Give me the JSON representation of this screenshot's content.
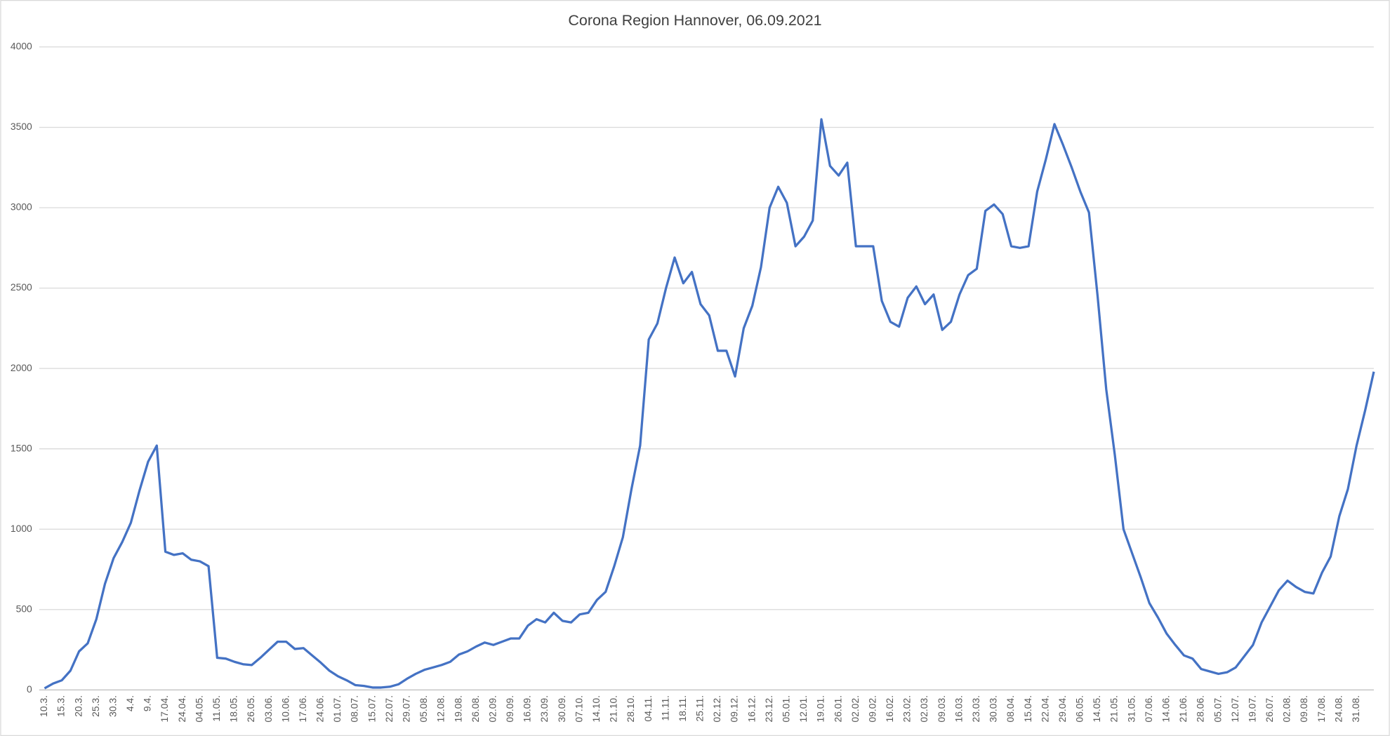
{
  "chart_data": {
    "type": "line",
    "title": "Corona Region Hannover, 06.09.2021",
    "categories": [
      "10.3.",
      null,
      "15.3.",
      null,
      "20.3.",
      null,
      "25.3.",
      null,
      "30.3.",
      null,
      "4.4.",
      null,
      "9.4.",
      null,
      "17.04.",
      null,
      "24.04.",
      null,
      "04.05.",
      null,
      "11.05.",
      null,
      "18.05.",
      null,
      "26.05.",
      null,
      "03.06.",
      null,
      "10.06.",
      null,
      "17.06.",
      null,
      "24.06.",
      null,
      "01.07.",
      null,
      "08.07.",
      null,
      "15.07.",
      null,
      "22.07.",
      null,
      "29.07.",
      null,
      "05.08.",
      null,
      "12.08.",
      null,
      "19.08.",
      null,
      "26.08.",
      null,
      "02.09.",
      null,
      "09.09.",
      null,
      "16.09.",
      null,
      "23.09.",
      null,
      "30.09.",
      null,
      "07.10.",
      null,
      "14.10.",
      null,
      "21.10.",
      null,
      "28.10.",
      null,
      "04.11.",
      null,
      "11.11.",
      null,
      "18.11.",
      null,
      "25.11.",
      null,
      "02.12.",
      null,
      "09.12.",
      null,
      "16.12.",
      null,
      "23.12.",
      null,
      "05.01.",
      null,
      "12.01.",
      null,
      "19.01.",
      null,
      "26.01.",
      null,
      "02.02.",
      null,
      "09.02.",
      null,
      "16.02.",
      null,
      "23.02.",
      null,
      "02.03.",
      null,
      "09.03.",
      null,
      "16.03.",
      null,
      "23.03.",
      null,
      "30.03.",
      null,
      "08.04.",
      null,
      "15.04.",
      null,
      "22.04.",
      null,
      "29.04.",
      null,
      "06.05.",
      null,
      "14.05.",
      null,
      "21.05.",
      null,
      "31.05.",
      null,
      "07.06.",
      null,
      "14.06.",
      null,
      "21.06.",
      null,
      "28.06.",
      null,
      "05.07.",
      null,
      "12.07.",
      null,
      "19.07.",
      null,
      "26.07.",
      null,
      "02.08.",
      null,
      "09.08.",
      null,
      "17.08.",
      null,
      "24.08.",
      null,
      "31.08.",
      null,
      null
    ],
    "series": [
      {
        "color": "#4472c4",
        "values": [
          10,
          40,
          60,
          120,
          240,
          290,
          440,
          660,
          820,
          920,
          1040,
          1240,
          1420,
          1520,
          860,
          840,
          850,
          810,
          800,
          770,
          200,
          195,
          175,
          160,
          155,
          200,
          250,
          300,
          300,
          255,
          260,
          215,
          170,
          120,
          85,
          60,
          30,
          25,
          15,
          15,
          20,
          35,
          70,
          100,
          125,
          140,
          155,
          175,
          220,
          240,
          270,
          295,
          280,
          300,
          320,
          320,
          400,
          440,
          420,
          480,
          430,
          420,
          470,
          480,
          560,
          610,
          770,
          950,
          1250,
          1520,
          2180,
          2280,
          2500,
          2690,
          2530,
          2600,
          2400,
          2330,
          2110,
          2110,
          1950,
          2250,
          2390,
          2630,
          3000,
          3130,
          3030,
          2760,
          2820,
          2920,
          3550,
          3260,
          3200,
          3280,
          2760,
          2760,
          2760,
          2420,
          2290,
          2260,
          2440,
          2510,
          2400,
          2460,
          2240,
          2290,
          2460,
          2580,
          2620,
          2980,
          3020,
          2960,
          2760,
          2750,
          2760,
          3100,
          3300,
          3520,
          3390,
          3250,
          3100,
          2970,
          2450,
          1870,
          1460,
          1000,
          850,
          700,
          540,
          450,
          350,
          280,
          215,
          195,
          130,
          115,
          100,
          110,
          140,
          210,
          280,
          420,
          520,
          620,
          680,
          640,
          610,
          600,
          730,
          830,
          1080,
          1250,
          1520,
          1740,
          1980
        ]
      }
    ],
    "ylim": [
      0,
      4000
    ],
    "yticks": [
      0,
      500,
      1000,
      1500,
      2000,
      2500,
      3000,
      3500,
      4000
    ],
    "grid": true
  }
}
